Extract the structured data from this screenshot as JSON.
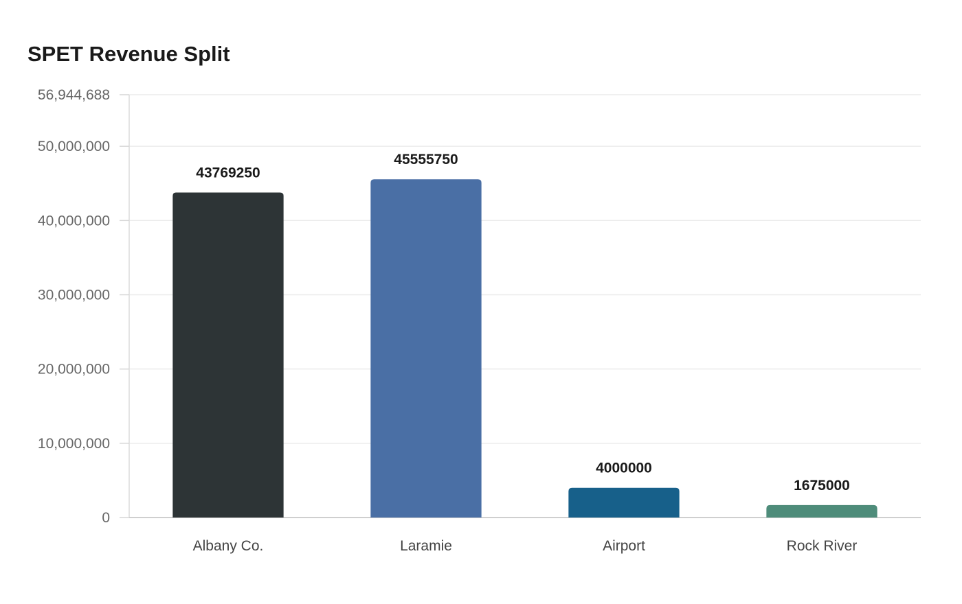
{
  "chart_data": {
    "type": "bar",
    "title": "SPET Revenue Split",
    "xlabel": "",
    "ylabel": "",
    "categories": [
      "Albany Co.",
      "Laramie",
      "Airport",
      "Rock River"
    ],
    "values": [
      43769250,
      45555750,
      4000000,
      1675000
    ],
    "value_labels": [
      "43769250",
      "45555750",
      "4000000",
      "1675000"
    ],
    "colors": [
      "#2d3436",
      "#4a6fa5",
      "#17608a",
      "#4e8c7a"
    ],
    "ylim": [
      0,
      56944688
    ],
    "yticks": [
      0,
      10000000,
      20000000,
      30000000,
      40000000,
      50000000,
      56944688
    ],
    "ytick_labels": [
      "0",
      "10,000,000",
      "20,000,000",
      "30,000,000",
      "40,000,000",
      "50,000,000",
      "56,944,688"
    ],
    "grid": true,
    "legend": "none"
  }
}
